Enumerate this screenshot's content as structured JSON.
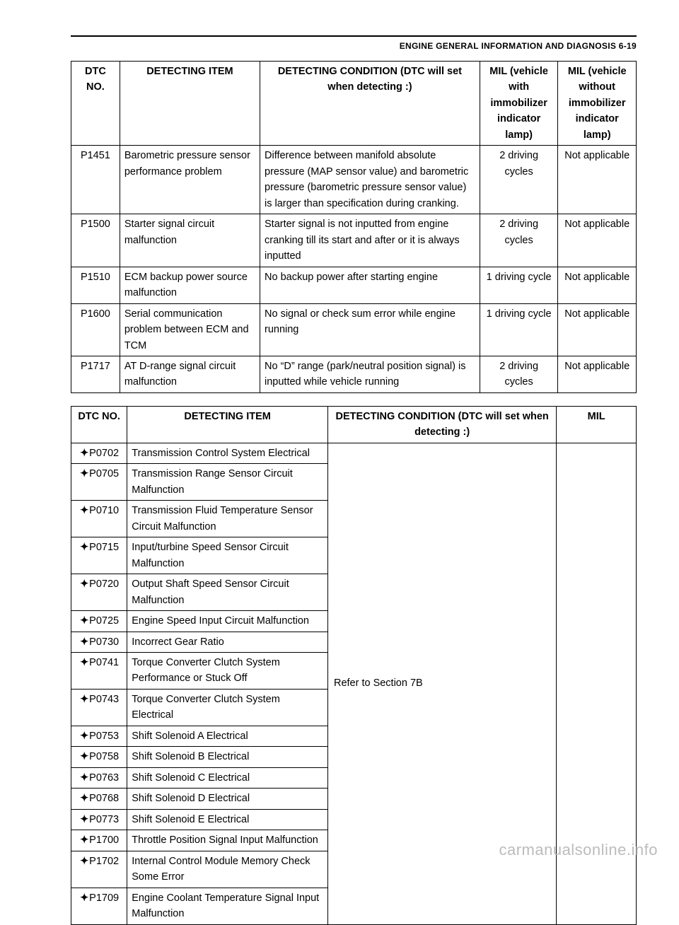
{
  "page": {
    "header": "ENGINE GENERAL INFORMATION AND DIAGNOSIS 6-19",
    "watermark": "carmanualsonline.info"
  },
  "table1": {
    "headers": {
      "dtc": "DTC NO.",
      "item": "DETECTING ITEM",
      "cond": "DETECTING CONDITION (DTC will set when detecting :)",
      "mil1": "MIL (vehicle with immobilizer indicator lamp)",
      "mil2": "MIL (vehicle without immobilizer indicator lamp)"
    },
    "rows": [
      {
        "dtc": "P1451",
        "item": "Barometric pressure sensor performance problem",
        "cond": "Difference between manifold absolute pressure (MAP sensor value) and barometric pressure (barometric pressure sensor value) is larger than specification during cranking.",
        "mil1": "2 driving cycles",
        "mil2": "Not applicable"
      },
      {
        "dtc": "P1500",
        "item": "Starter signal circuit malfunction",
        "cond": "Starter signal is not inputted from engine cranking till its start and after or it is always inputted",
        "mil1": "2 driving cycles",
        "mil2": "Not applicable"
      },
      {
        "dtc": "P1510",
        "item": "ECM backup power source malfunction",
        "cond": "No backup power after starting engine",
        "mil1": "1 driving cycle",
        "mil2": "Not applicable"
      },
      {
        "dtc": "P1600",
        "item": "Serial communication problem between ECM and TCM",
        "cond": "No signal or check sum error while engine running",
        "mil1": "1 driving cycle",
        "mil2": "Not applicable"
      },
      {
        "dtc": "P1717",
        "item": "AT D-range signal circuit malfunction",
        "cond": "No “D” range (park/neutral position signal) is inputted while vehicle running",
        "mil1": "2 driving cycles",
        "mil2": "Not applicable"
      }
    ]
  },
  "table2": {
    "headers": {
      "dtc": "DTC NO.",
      "item": "DETECTING ITEM",
      "cond": "DETECTING CONDITION (DTC will set when detecting :)",
      "mil": "MIL"
    },
    "refer": "Refer to Section 7B",
    "rows": [
      {
        "dtc": "P0702",
        "item": "Transmission Control System Electrical"
      },
      {
        "dtc": "P0705",
        "item": "Transmission Range Sensor Circuit Malfunction"
      },
      {
        "dtc": "P0710",
        "item": "Transmission Fluid Temperature Sensor Circuit Malfunction"
      },
      {
        "dtc": "P0715",
        "item": "Input/turbine Speed Sensor Circuit Malfunction"
      },
      {
        "dtc": "P0720",
        "item": "Output Shaft Speed Sensor Circuit Malfunction"
      },
      {
        "dtc": "P0725",
        "item": "Engine Speed Input Circuit Malfunction"
      },
      {
        "dtc": "P0730",
        "item": "Incorrect Gear Ratio"
      },
      {
        "dtc": "P0741",
        "item": "Torque Converter Clutch System Performance or Stuck Off"
      },
      {
        "dtc": "P0743",
        "item": "Torque Converter Clutch System Electrical"
      },
      {
        "dtc": "P0753",
        "item": "Shift Solenoid A Electrical"
      },
      {
        "dtc": "P0758",
        "item": "Shift Solenoid B Electrical"
      },
      {
        "dtc": "P0763",
        "item": "Shift Solenoid C Electrical"
      },
      {
        "dtc": "P0768",
        "item": "Shift Solenoid D Electrical"
      },
      {
        "dtc": "P0773",
        "item": "Shift Solenoid E Electrical"
      },
      {
        "dtc": "P1700",
        "item": "Throttle Position Signal Input Malfunction"
      },
      {
        "dtc": "P1702",
        "item": "Internal Control Module Memory Check Some Error"
      },
      {
        "dtc": "P1709",
        "item": "Engine Coolant Temperature Signal Input Malfunction"
      }
    ]
  }
}
